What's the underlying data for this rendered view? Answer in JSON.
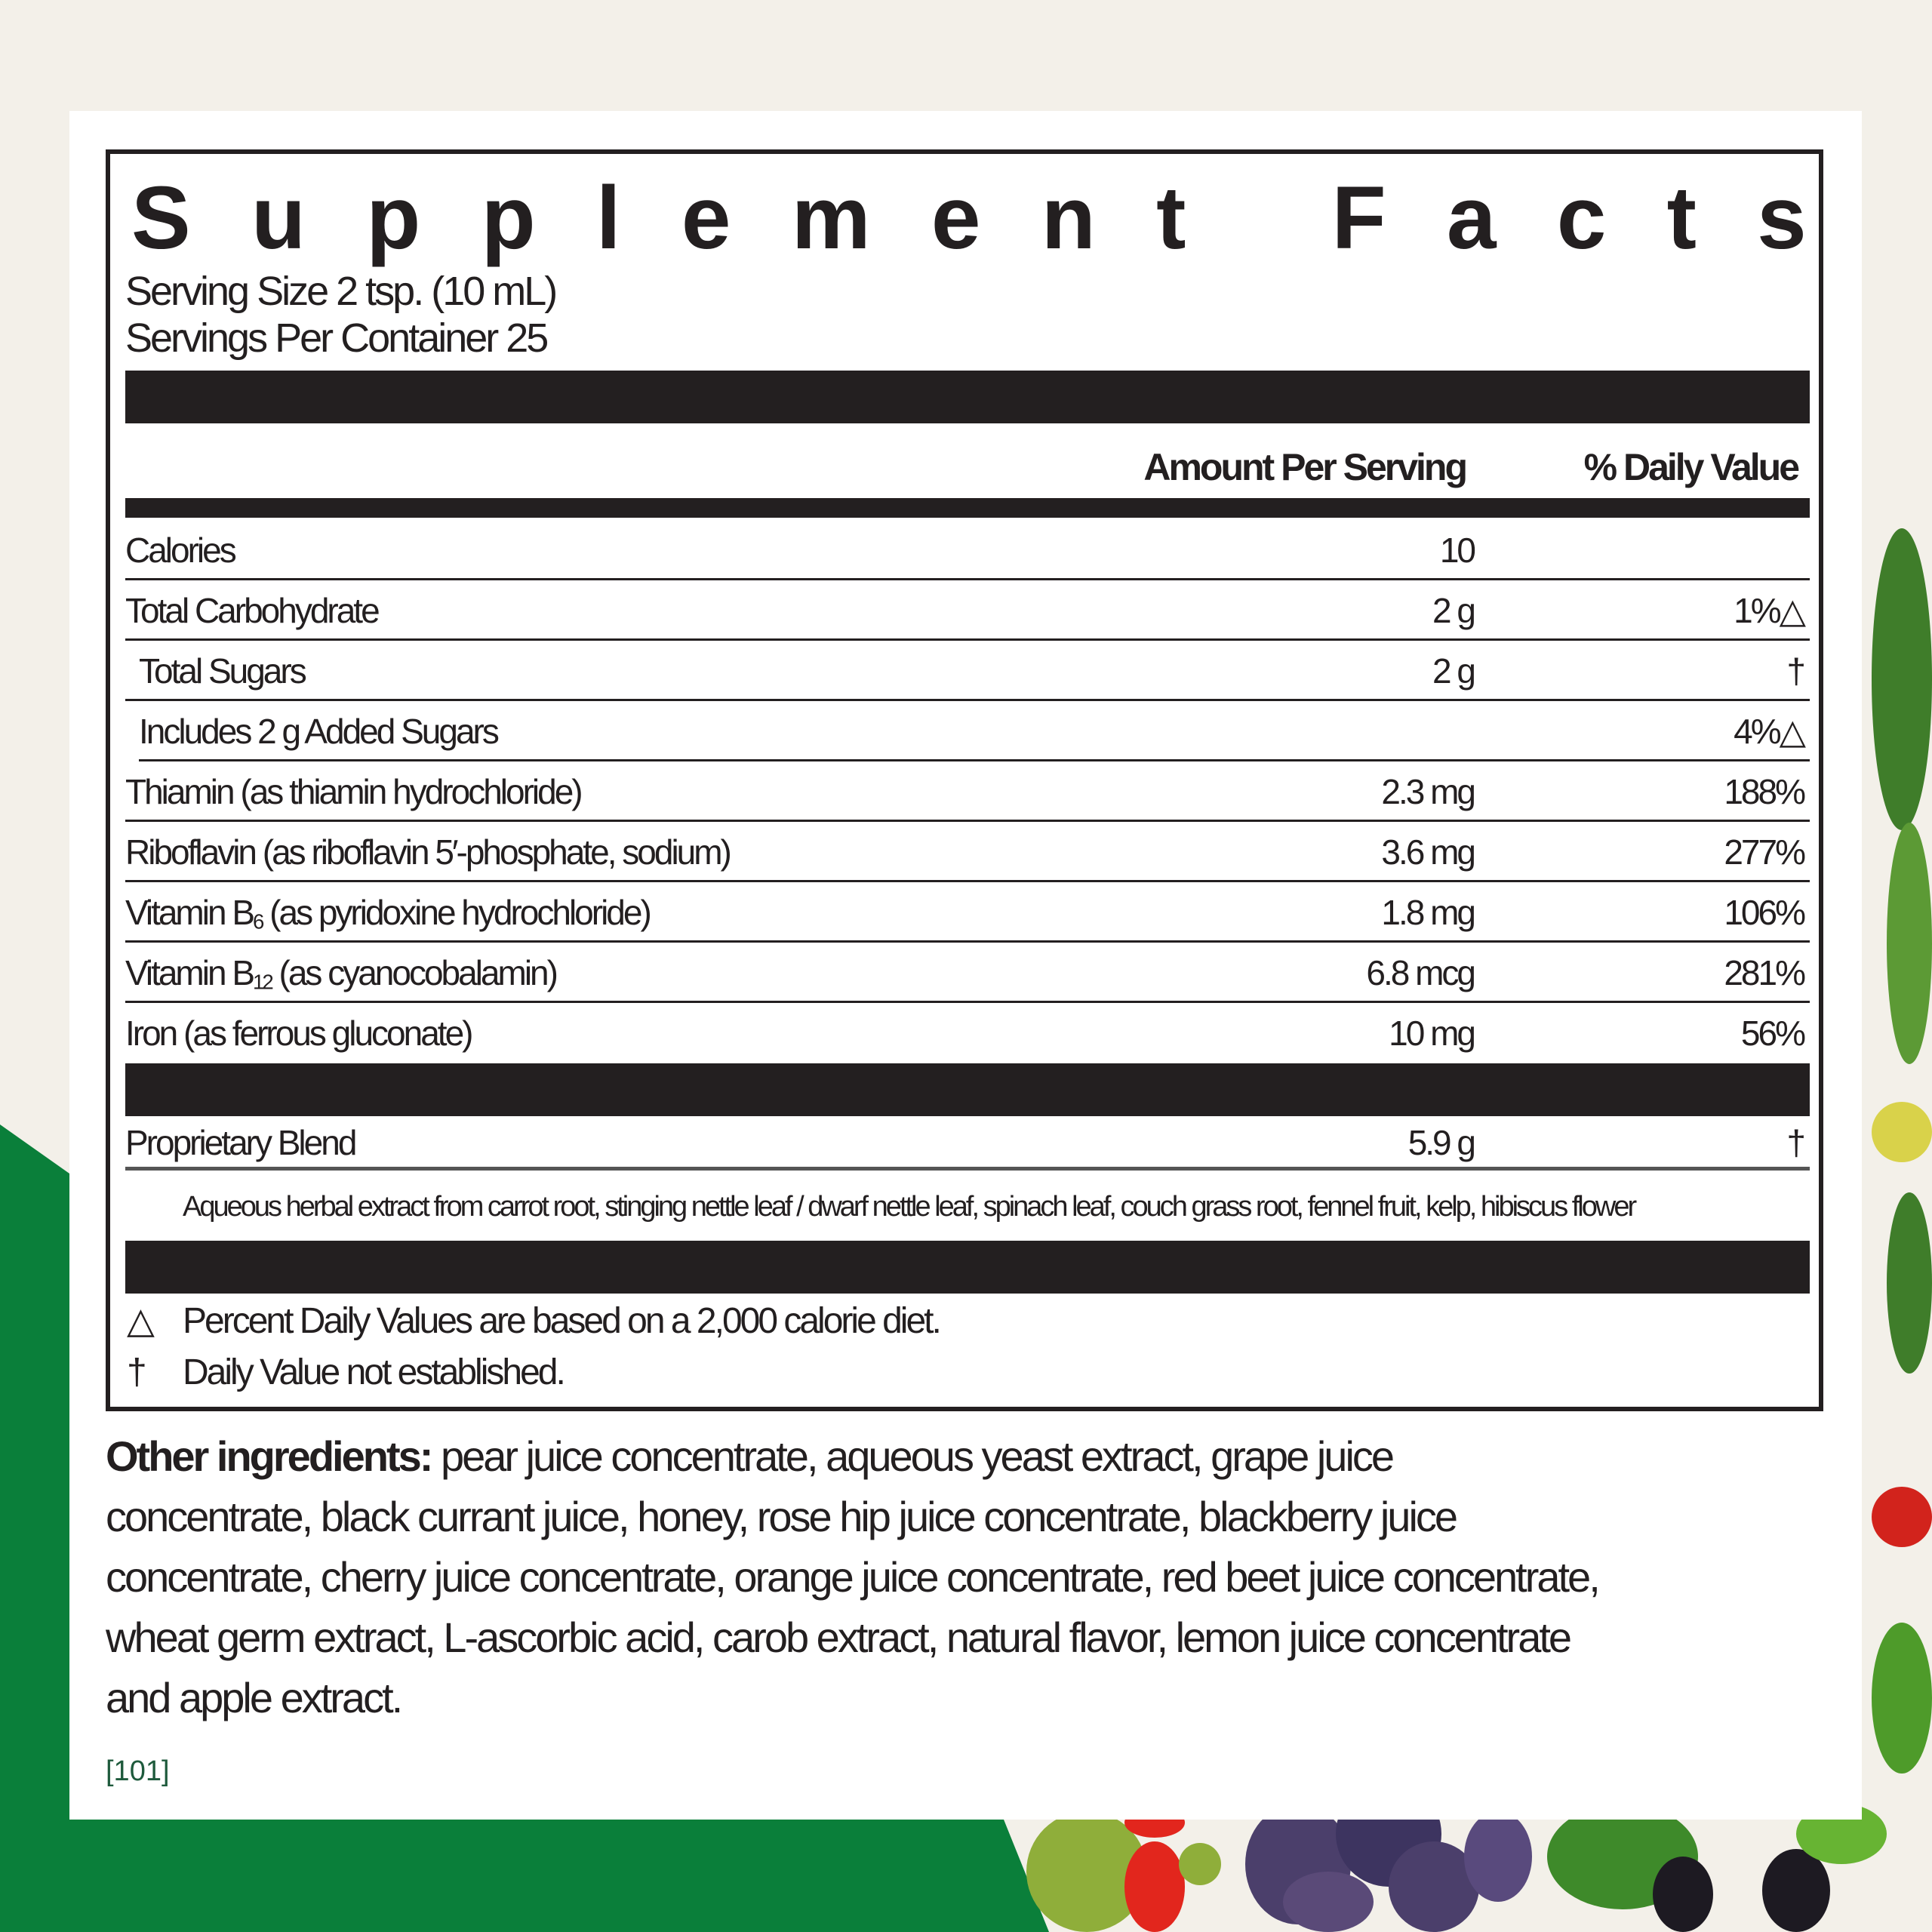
{
  "colors": {
    "background": "#f3f0e9",
    "card": "#ffffff",
    "brand_green": "#0a7f3a",
    "ink": "#231f20",
    "code": "#1e5a3c"
  },
  "title": [
    "S",
    "u",
    "p",
    "p",
    "l",
    "e",
    "m",
    "e",
    "n",
    "t",
    "",
    "F",
    "a",
    "c",
    "t",
    "s"
  ],
  "serving_size": "Serving Size 2 tsp. (10 mL)",
  "servings_per_container": "Servings Per Container 25",
  "headers": {
    "amount": "Amount Per Serving",
    "daily_value": "% Daily Value"
  },
  "rows": [
    {
      "label": "Calories",
      "amount": "10",
      "dv": ""
    },
    {
      "label": "Total Carbohydrate",
      "amount": "2 g",
      "dv": "1%△"
    },
    {
      "label": "Total Sugars",
      "amount": "2 g",
      "dv": "†"
    },
    {
      "label": "Includes 2 g Added Sugars",
      "amount": "",
      "dv": "4%△"
    },
    {
      "label": "Thiamin (as thiamin hydrochloride)",
      "amount": "2.3 mg",
      "dv": "188%"
    },
    {
      "label": "Riboflavin (as riboflavin 5′-phosphate, sodium)",
      "amount": "3.6 mg",
      "dv": "277%"
    },
    {
      "label_pre": "Vitamin B",
      "label_sub": "6",
      "label_post": " (as pyridoxine hydrochloride)",
      "amount": "1.8 mg",
      "dv": "106%"
    },
    {
      "label_pre": "Vitamin B",
      "label_sub": "12",
      "label_post": " (as cyanocobalamin)",
      "amount": "6.8 mcg",
      "dv": "281%"
    },
    {
      "label": "Iron (as ferrous gluconate)",
      "amount": "10 mg",
      "dv": "56%"
    }
  ],
  "blend": {
    "label": "Proprietary Blend",
    "amount": "5.9 g",
    "dv": "†",
    "description": "Aqueous herbal extract from carrot root, stinging nettle leaf / dwarf nettle leaf, spinach leaf, couch grass root, fennel fruit, kelp, hibiscus flower"
  },
  "footnotes": [
    {
      "symbol": "△",
      "text": "Percent Daily Values are based on a 2,000 calorie diet."
    },
    {
      "symbol": "†",
      "text": "Daily Value not established."
    }
  ],
  "other_ingredients": {
    "label": "Other ingredients:",
    "lines": [
      " pear juice concentrate, aqueous yeast extract, grape juice",
      "concentrate, black currant juice, honey, rose hip juice concentrate, blackberry juice",
      "concentrate, cherry juice concentrate, orange juice concentrate, red beet juice concentrate,",
      "wheat germ extract, L-ascorbic acid, carob extract, natural flavor, lemon juice concentrate",
      "and apple extract."
    ]
  },
  "code": "[101]"
}
